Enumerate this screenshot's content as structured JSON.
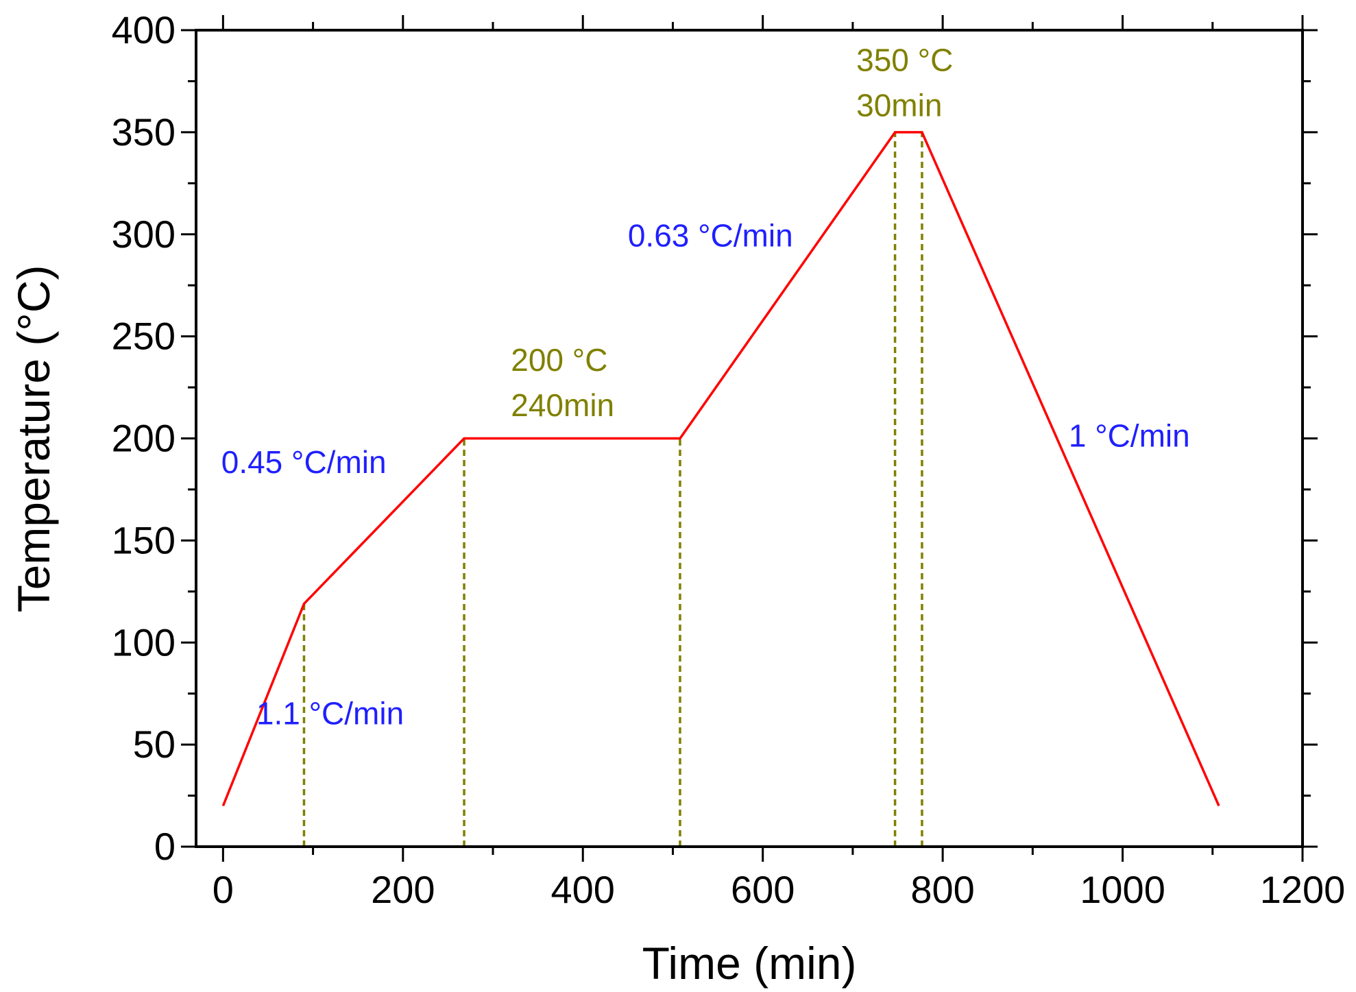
{
  "chart_data": {
    "type": "line",
    "title": "",
    "xlabel": "Time (min)",
    "ylabel": "Temperature (°C)",
    "xlim": [
      -30,
      1200
    ],
    "ylim": [
      0,
      400
    ],
    "xticks": [
      0,
      200,
      400,
      600,
      800,
      1000,
      1200
    ],
    "yticks": [
      0,
      50,
      100,
      150,
      200,
      250,
      300,
      350,
      400
    ],
    "grid": false,
    "series": [
      {
        "name": "heating profile",
        "color": "#ff0000",
        "points": [
          [
            0,
            20
          ],
          [
            90,
            119
          ],
          [
            268,
            200
          ],
          [
            508,
            200
          ],
          [
            747,
            350
          ],
          [
            777,
            350
          ],
          [
            1107,
            20
          ]
        ]
      }
    ],
    "markers": {
      "color": "#808000",
      "x": [
        90,
        268,
        508,
        747,
        777
      ],
      "y": [
        119,
        200,
        200,
        350,
        350
      ]
    },
    "annotations": [
      {
        "lines": [
          "1.1 °C/min"
        ],
        "color": "#1f1fff",
        "anchor": [
          37,
          60
        ]
      },
      {
        "lines": [
          "0.45 °C/min"
        ],
        "color": "#1f1fff",
        "anchor": [
          -2,
          183
        ]
      },
      {
        "lines": [
          "200 °C",
          "240min"
        ],
        "color": "#808000",
        "anchor": [
          320,
          233
        ]
      },
      {
        "lines": [
          "0.63 °C/min"
        ],
        "color": "#1f1fff",
        "anchor": [
          450,
          294
        ]
      },
      {
        "lines": [
          "350 °C",
          "30min"
        ],
        "color": "#808000",
        "anchor": [
          704,
          380
        ]
      },
      {
        "lines": [
          "1 °C/min"
        ],
        "color": "#1f1fff",
        "anchor": [
          940,
          196
        ]
      }
    ]
  }
}
